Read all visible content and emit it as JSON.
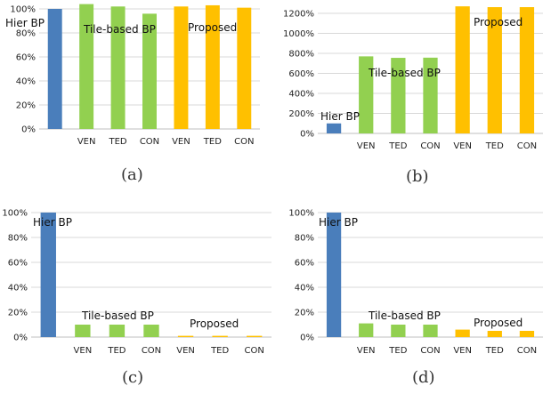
{
  "colors": {
    "hier": "#4a7ebb",
    "tile": "#92d050",
    "proposed": "#ffc000",
    "grid": "#d9d9d9",
    "axis": "#bfbfbf"
  },
  "chart_data": [
    {
      "type": "bar",
      "label": "(a)",
      "ylim": [
        0,
        100
      ],
      "yticks": [
        "0%",
        "20%",
        "40%",
        "60%",
        "80%",
        "100%"
      ],
      "categories": [
        "",
        "VEN",
        "TED",
        "CON",
        "VEN",
        "TED",
        "CON"
      ],
      "values": [
        100,
        104,
        102,
        96,
        102,
        103,
        101
      ],
      "groups": [
        "hier",
        "tile",
        "tile",
        "tile",
        "proposed",
        "proposed",
        "proposed"
      ],
      "group_labels": [
        "Hier BP",
        "Tile-based BP",
        "Proposed"
      ]
    },
    {
      "type": "bar",
      "label": "(b)",
      "ylim": [
        0,
        1200
      ],
      "yticks": [
        "0%",
        "200%",
        "400%",
        "600%",
        "800%",
        "1000%",
        "1200%"
      ],
      "categories": [
        "",
        "VEN",
        "TED",
        "CON",
        "VEN",
        "TED",
        "CON"
      ],
      "values": [
        100,
        770,
        755,
        757,
        1270,
        1262,
        1262
      ],
      "groups": [
        "hier",
        "tile",
        "tile",
        "tile",
        "proposed",
        "proposed",
        "proposed"
      ],
      "group_labels": [
        "Hier BP",
        "Tile-based BP",
        "Proposed"
      ]
    },
    {
      "type": "bar",
      "label": "(c)",
      "ylim": [
        0,
        100
      ],
      "yticks": [
        "0%",
        "20%",
        "40%",
        "60%",
        "80%",
        "100%"
      ],
      "categories": [
        "",
        "VEN",
        "TED",
        "CON",
        "VEN",
        "TED",
        "CON"
      ],
      "values": [
        100,
        10,
        10,
        10,
        1,
        1,
        1
      ],
      "groups": [
        "hier",
        "tile",
        "tile",
        "tile",
        "proposed",
        "proposed",
        "proposed"
      ],
      "group_labels": [
        "Hier BP",
        "Tile-based BP",
        "Proposed"
      ]
    },
    {
      "type": "bar",
      "label": "(d)",
      "ylim": [
        0,
        100
      ],
      "yticks": [
        "0%",
        "20%",
        "40%",
        "60%",
        "80%",
        "100%"
      ],
      "categories": [
        "",
        "VEN",
        "TED",
        "CON",
        "VEN",
        "TED",
        "CON"
      ],
      "values": [
        100,
        11,
        10,
        10,
        6,
        5,
        5
      ],
      "groups": [
        "hier",
        "tile",
        "tile",
        "tile",
        "proposed",
        "proposed",
        "proposed"
      ],
      "group_labels": [
        "Hier BP",
        "Tile-based BP",
        "Proposed"
      ]
    }
  ]
}
